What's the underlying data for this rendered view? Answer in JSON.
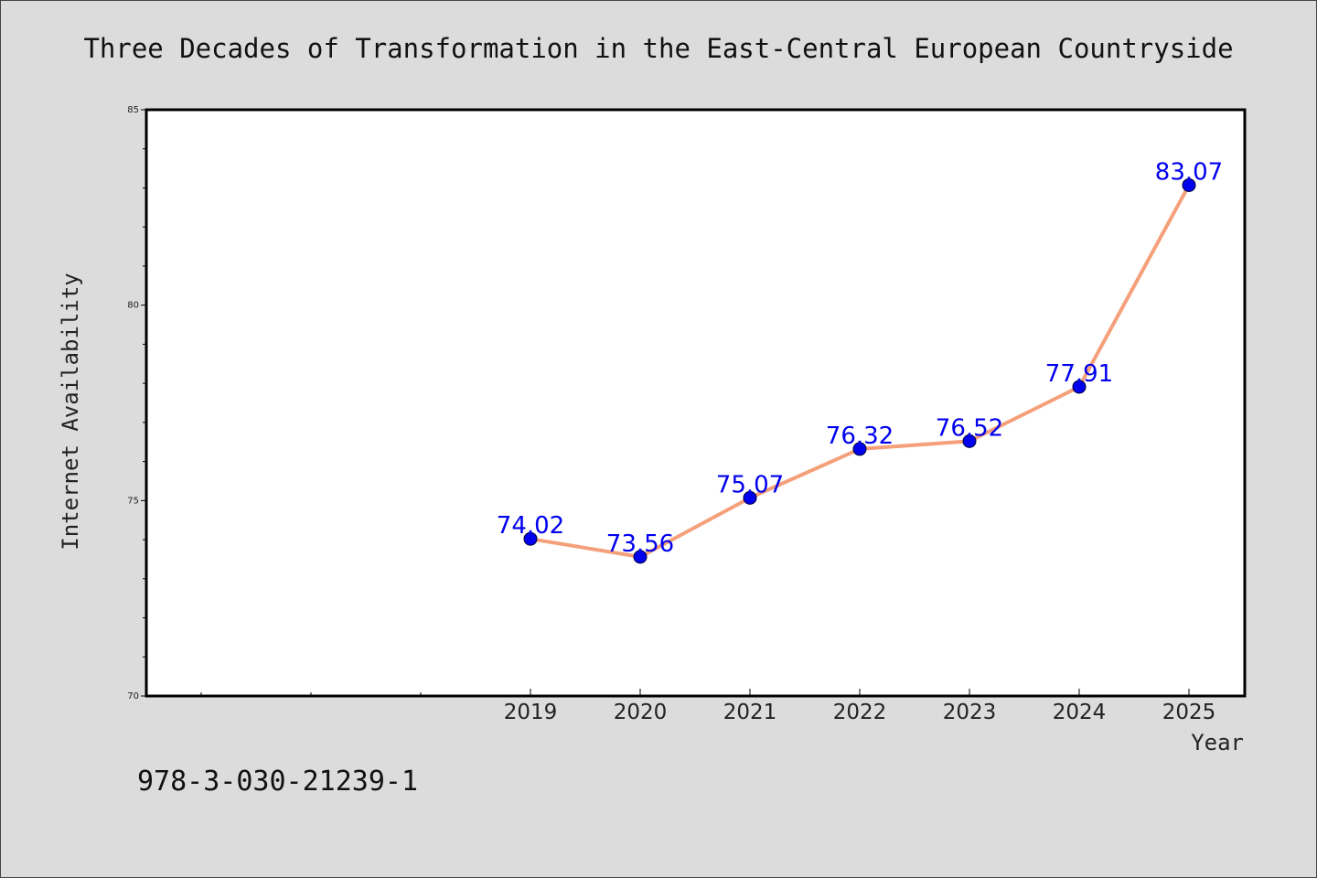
{
  "chart_data": {
    "type": "line",
    "title": "Three Decades of Transformation in the East-Central European Countryside",
    "xlabel": "Year",
    "ylabel": "Internet Availability",
    "categories": [
      "2019",
      "2020",
      "2021",
      "2022",
      "2023",
      "2024",
      "2025"
    ],
    "series": [
      {
        "values": [
          74.02,
          73.56,
          75.07,
          76.32,
          76.52,
          77.91,
          83.07
        ],
        "labels": [
          "74.02",
          "73.56",
          "75.07",
          "76.32",
          "76.52",
          "77.91",
          "83.07"
        ],
        "line_color": "#f4a07a",
        "marker_color": "#0000ee"
      }
    ],
    "ylim": [
      70,
      85
    ],
    "yticks": [
      "70",
      "75",
      "80",
      "85"
    ],
    "grid": false,
    "legend": "none"
  },
  "footer": {
    "isbn": "978-3-030-21239-1"
  },
  "colors": {
    "background": "#dcdcdc",
    "plot_background": "#ffffff"
  }
}
